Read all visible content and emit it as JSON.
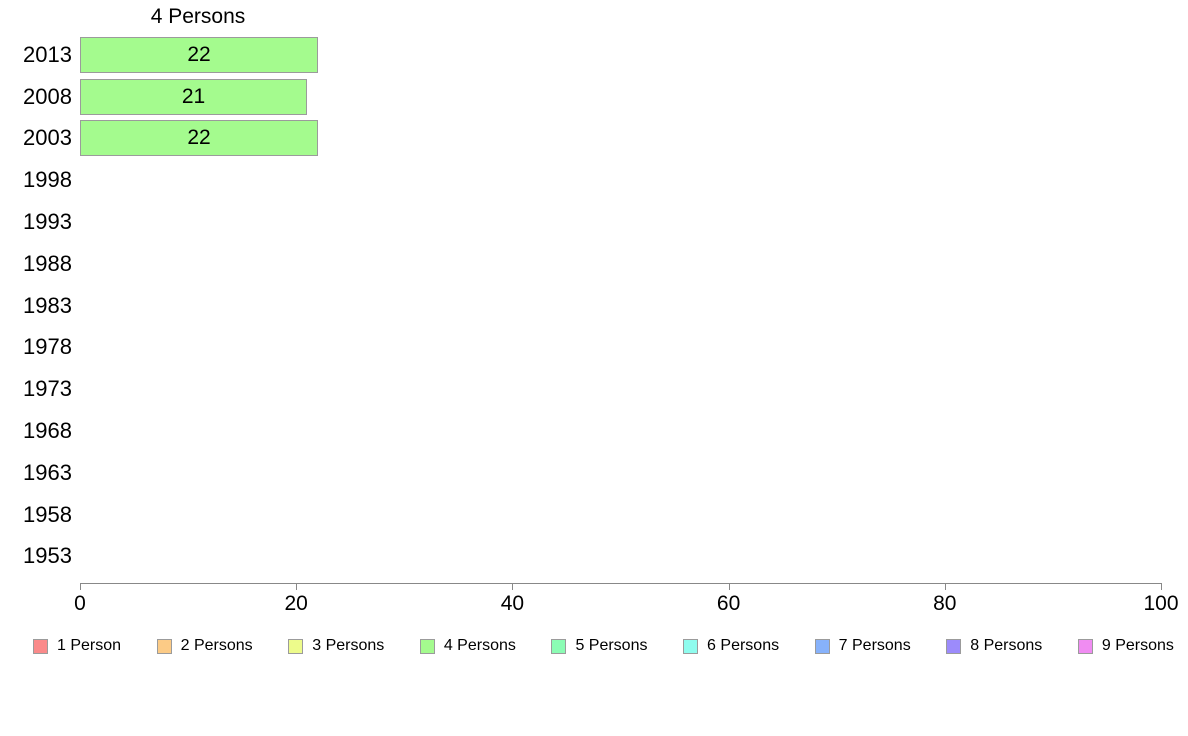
{
  "chart_data": {
    "type": "bar",
    "orientation": "horizontal",
    "title": "4 Persons",
    "categories": [
      "2013",
      "2008",
      "2003",
      "1998",
      "1993",
      "1988",
      "1983",
      "1978",
      "1973",
      "1968",
      "1963",
      "1958",
      "1953"
    ],
    "values": [
      22,
      21,
      22,
      null,
      null,
      null,
      null,
      null,
      null,
      null,
      null,
      null,
      null
    ],
    "bar_labels": [
      "22",
      "21",
      "22",
      "",
      "",
      "",
      "",
      "",
      "",
      "",
      "",
      "",
      ""
    ],
    "xlabel": "",
    "ylabel": "",
    "xlim": [
      0,
      100
    ],
    "x_ticks": [
      0,
      20,
      40,
      60,
      80,
      100
    ],
    "grid": false,
    "bar_color": "#a4fb8e",
    "bar_border_color": "#9b9b9b",
    "axis_color": "#888888",
    "legend_position": "bottom",
    "legend": [
      {
        "label": "1 Person",
        "color": "#fa8a8a"
      },
      {
        "label": "2 Persons",
        "color": "#fccb86"
      },
      {
        "label": "3 Persons",
        "color": "#edfb8b"
      },
      {
        "label": "4 Persons",
        "color": "#a4fb8e"
      },
      {
        "label": "5 Persons",
        "color": "#8bfcb4"
      },
      {
        "label": "6 Persons",
        "color": "#8ffcee"
      },
      {
        "label": "7 Persons",
        "color": "#87b2fb"
      },
      {
        "label": "8 Persons",
        "color": "#9c8bfb"
      },
      {
        "label": "9 Persons",
        "color": "#f08cf2"
      }
    ]
  }
}
